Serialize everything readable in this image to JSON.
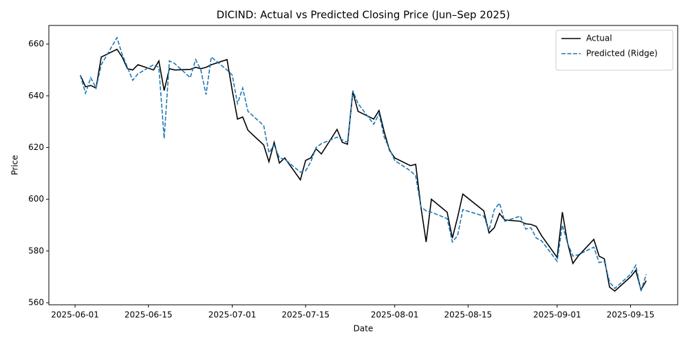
{
  "chart_data": {
    "type": "line",
    "title": "DICIND: Actual vs Predicted Closing Price (Jun–Sep 2025)",
    "xlabel": "Date",
    "ylabel": "Price",
    "x": [
      "2025-06-02",
      "2025-06-03",
      "2025-06-04",
      "2025-06-05",
      "2025-06-06",
      "2025-06-09",
      "2025-06-10",
      "2025-06-11",
      "2025-06-12",
      "2025-06-13",
      "2025-06-16",
      "2025-06-17",
      "2025-06-18",
      "2025-06-19",
      "2025-06-20",
      "2025-06-23",
      "2025-06-24",
      "2025-06-25",
      "2025-06-26",
      "2025-06-27",
      "2025-06-30",
      "2025-07-01",
      "2025-07-02",
      "2025-07-03",
      "2025-07-04",
      "2025-07-07",
      "2025-07-08",
      "2025-07-09",
      "2025-07-10",
      "2025-07-11",
      "2025-07-14",
      "2025-07-15",
      "2025-07-16",
      "2025-07-17",
      "2025-07-18",
      "2025-07-21",
      "2025-07-22",
      "2025-07-23",
      "2025-07-24",
      "2025-07-25",
      "2025-07-28",
      "2025-07-29",
      "2025-07-30",
      "2025-07-31",
      "2025-08-01",
      "2025-08-04",
      "2025-08-05",
      "2025-08-06",
      "2025-08-07",
      "2025-08-08",
      "2025-08-11",
      "2025-08-12",
      "2025-08-13",
      "2025-08-14",
      "2025-08-18",
      "2025-08-19",
      "2025-08-20",
      "2025-08-21",
      "2025-08-22",
      "2025-08-25",
      "2025-08-26",
      "2025-08-27",
      "2025-08-28",
      "2025-08-29",
      "2025-09-01",
      "2025-09-02",
      "2025-09-03",
      "2025-09-04",
      "2025-09-05",
      "2025-09-08",
      "2025-09-09",
      "2025-09-10",
      "2025-09-11",
      "2025-09-12",
      "2025-09-15",
      "2025-09-16",
      "2025-09-17",
      "2025-09-18"
    ],
    "series": [
      {
        "name": "Actual",
        "color": "#000000",
        "dash": false,
        "values": [
          648,
          643.5,
          644,
          643,
          655,
          658,
          655,
          650.5,
          650,
          652,
          650,
          653.5,
          642,
          650.5,
          650,
          650.2,
          651,
          650.5,
          651,
          652,
          654,
          642,
          631,
          631.8,
          626.7,
          621,
          614.5,
          622,
          614,
          616,
          607.5,
          615,
          616,
          619.5,
          617.5,
          627,
          622,
          621.3,
          641.5,
          634,
          631,
          634.3,
          626,
          619,
          616,
          613,
          613.5,
          597,
          583.5,
          600,
          595,
          585,
          593,
          602,
          595.5,
          587,
          589,
          594.5,
          592,
          591.5,
          590.5,
          590.3,
          589.5,
          586,
          577.5,
          595,
          583,
          575.2,
          578,
          584.5,
          578,
          577,
          566,
          564.5,
          570,
          572.5,
          565,
          568.5
        ]
      },
      {
        "name": "Predicted (Ridge)",
        "color": "#1f77b4",
        "dash": true,
        "values": [
          648,
          641,
          647,
          643,
          652,
          662.5,
          656,
          651,
          646,
          648.5,
          652,
          651,
          623.5,
          653.5,
          652.5,
          647,
          654,
          650,
          640.5,
          655,
          650,
          648,
          637,
          643,
          634,
          628.5,
          618,
          621,
          616,
          615.5,
          610.5,
          611,
          614.5,
          620,
          621.5,
          624,
          623,
          622,
          642,
          637,
          629,
          633,
          624,
          619.5,
          615,
          611,
          609,
          597,
          595.5,
          595,
          592.5,
          583.5,
          586,
          596,
          593.5,
          588,
          596,
          598.5,
          591.5,
          593.5,
          588.5,
          589,
          585,
          584,
          576,
          590,
          583,
          578,
          578.5,
          581.5,
          575.5,
          576,
          568,
          565.5,
          571,
          574.5,
          564.5,
          571
        ]
      }
    ],
    "xlim": [
      "2025-05-27",
      "2025-09-24"
    ],
    "xticks": [
      "2025-06-01",
      "2025-06-15",
      "2025-07-01",
      "2025-07-15",
      "2025-08-01",
      "2025-08-15",
      "2025-09-01",
      "2025-09-15"
    ],
    "ylim": [
      559.2,
      667.2
    ],
    "yticks": [
      560,
      580,
      600,
      620,
      640,
      660
    ],
    "grid": false,
    "legend": "upper right"
  }
}
